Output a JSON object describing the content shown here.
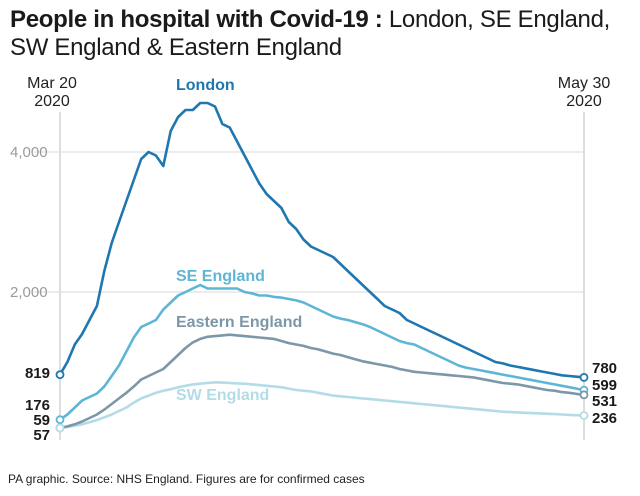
{
  "title": {
    "bold": "People in hospital with Covid-19 :",
    "light": " London, SE England, SW England & Eastern England"
  },
  "footer": "PA graphic. Source: NHS England. Figures are for confirmed cases",
  "chart_data": {
    "type": "line",
    "title": "People in hospital with Covid-19 : London, SE England, SW England & Eastern England",
    "x_start_label": [
      "Mar 20",
      "2020"
    ],
    "x_end_label": [
      "May 30",
      "2020"
    ],
    "days": 72,
    "ylim": [
      0,
      5000
    ],
    "yticks": [
      2000,
      4000
    ],
    "ytick_labels": [
      "2,000",
      "4,000"
    ],
    "grid": true,
    "series": [
      {
        "name": "London",
        "color": "#1f77b0",
        "start_label": "819",
        "end_label": "780",
        "values": [
          819,
          1000,
          1250,
          1400,
          1600,
          1800,
          2300,
          2700,
          3000,
          3300,
          3600,
          3900,
          4000,
          3950,
          3800,
          4300,
          4500,
          4600,
          4600,
          4700,
          4700,
          4650,
          4400,
          4350,
          4150,
          3950,
          3750,
          3550,
          3400,
          3300,
          3200,
          3000,
          2900,
          2750,
          2650,
          2600,
          2550,
          2500,
          2400,
          2300,
          2200,
          2100,
          2000,
          1900,
          1800,
          1750,
          1700,
          1600,
          1550,
          1500,
          1450,
          1400,
          1350,
          1300,
          1250,
          1200,
          1150,
          1100,
          1050,
          1000,
          980,
          950,
          930,
          910,
          890,
          870,
          850,
          830,
          810,
          800,
          790,
          780
        ]
      },
      {
        "name": "SE England",
        "color": "#5db6d5",
        "start_label": "176",
        "end_label": "599",
        "values": [
          176,
          250,
          350,
          450,
          500,
          550,
          650,
          800,
          950,
          1150,
          1350,
          1500,
          1550,
          1600,
          1750,
          1850,
          1950,
          2000,
          2050,
          2100,
          2050,
          2050,
          2050,
          2050,
          2050,
          2000,
          1980,
          1950,
          1950,
          1930,
          1920,
          1900,
          1880,
          1850,
          1800,
          1750,
          1700,
          1650,
          1620,
          1600,
          1570,
          1540,
          1500,
          1450,
          1400,
          1350,
          1300,
          1270,
          1250,
          1200,
          1150,
          1100,
          1050,
          1000,
          950,
          920,
          900,
          880,
          860,
          840,
          820,
          800,
          780,
          760,
          740,
          720,
          700,
          680,
          660,
          640,
          620,
          599
        ]
      },
      {
        "name": "Eastern England",
        "color": "#7c98a8",
        "start_label": "59",
        "end_label": "531",
        "values": [
          59,
          80,
          110,
          150,
          200,
          250,
          320,
          400,
          480,
          560,
          650,
          750,
          800,
          850,
          900,
          1000,
          1100,
          1200,
          1280,
          1330,
          1360,
          1370,
          1380,
          1390,
          1380,
          1370,
          1360,
          1350,
          1340,
          1330,
          1300,
          1270,
          1250,
          1230,
          1200,
          1180,
          1150,
          1120,
          1100,
          1070,
          1040,
          1010,
          990,
          970,
          950,
          930,
          900,
          880,
          860,
          850,
          840,
          830,
          820,
          810,
          800,
          790,
          780,
          760,
          740,
          720,
          700,
          690,
          680,
          660,
          640,
          620,
          600,
          590,
          570,
          560,
          545,
          531
        ]
      },
      {
        "name": "SW England",
        "color": "#b3dce8",
        "start_label": "57",
        "end_label": "236",
        "values": [
          57,
          70,
          90,
          110,
          140,
          170,
          210,
          250,
          300,
          350,
          420,
          480,
          520,
          560,
          590,
          610,
          640,
          660,
          680,
          690,
          700,
          710,
          705,
          700,
          695,
          690,
          680,
          670,
          660,
          650,
          640,
          620,
          600,
          590,
          580,
          560,
          540,
          520,
          510,
          500,
          490,
          480,
          470,
          460,
          450,
          440,
          430,
          420,
          410,
          400,
          390,
          380,
          370,
          360,
          350,
          340,
          330,
          320,
          310,
          300,
          290,
          285,
          280,
          275,
          270,
          265,
          260,
          255,
          250,
          245,
          240,
          236
        ]
      }
    ]
  }
}
